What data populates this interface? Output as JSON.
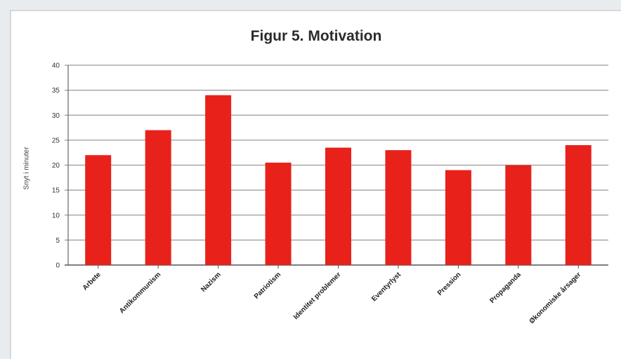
{
  "chart_data": {
    "type": "bar",
    "title": "Figur 5. Motivation",
    "ylabel": "Snyt i minuter",
    "xlabel": "",
    "ylim": [
      0,
      40
    ],
    "yticks": [
      0,
      5,
      10,
      15,
      20,
      25,
      30,
      35,
      40
    ],
    "grid": true,
    "legend": "none",
    "bar_color": "#e8211b",
    "categories": [
      "Arbete",
      "Antikommunism",
      "Nazism",
      "Patriotism",
      "Identitet problemer",
      "Eventyrlyst",
      "Pression",
      "Propaganda",
      "Økonomiske årsager"
    ],
    "values": [
      22,
      27,
      34,
      20.5,
      23.5,
      23,
      19,
      20,
      24
    ]
  }
}
